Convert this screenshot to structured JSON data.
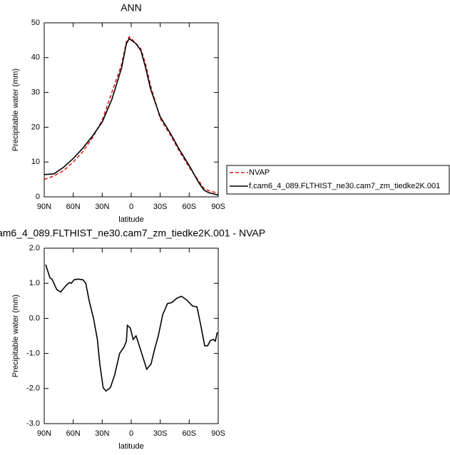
{
  "chart_data": [
    {
      "type": "line",
      "title": "ANN",
      "xlabel": "latitude",
      "ylabel": "Precipitable water (mm)",
      "x": [
        90,
        80,
        70,
        60,
        50,
        40,
        30,
        20,
        10,
        5,
        2,
        0,
        -5,
        -10,
        -15,
        -20,
        -30,
        -40,
        -50,
        -60,
        -70,
        -75,
        -80,
        -90
      ],
      "series": [
        {
          "name": "NVAP",
          "color": "#e41a1c",
          "dash": true,
          "values": [
            5,
            6,
            7.5,
            10,
            13,
            17,
            22,
            30,
            38,
            44.5,
            46,
            45.5,
            44,
            42.5,
            38,
            32,
            22.5,
            18,
            13,
            8.5,
            4.5,
            2.5,
            1.8,
            1
          ]
        },
        {
          "name": "f.cam6_4_089.FLTHIST_ne30.cam7_zm_tiedke2K.001",
          "color": "#000000",
          "dash": false,
          "values": [
            6.4,
            6.6,
            8.5,
            11,
            14,
            17.5,
            21.5,
            28,
            37,
            44,
            45.5,
            45,
            44,
            42,
            37,
            31,
            23,
            18.5,
            13.5,
            9,
            4,
            2,
            1.2,
            0.5
          ]
        }
      ],
      "xlim": [
        90,
        -90
      ],
      "xticks": [
        {
          "value": 90,
          "label": "90N"
        },
        {
          "value": 60,
          "label": "60N"
        },
        {
          "value": 30,
          "label": "30N"
        },
        0,
        {
          "value": -30,
          "label": "30S"
        },
        {
          "value": -60,
          "label": "60S"
        },
        {
          "value": -90,
          "label": "90S"
        }
      ],
      "ylim": [
        0,
        50
      ],
      "yticks": [
        0,
        10,
        20,
        30,
        40,
        50
      ],
      "legend": "right"
    },
    {
      "type": "line",
      "title": "am6_4_089.FLTHIST_ne30.cam7_zm_tiedke2K.001 - NVAP",
      "xlabel": "latitude",
      "ylabel": "Precipitable water (mm)",
      "x": [
        88.5,
        84,
        82,
        77,
        73,
        67,
        64,
        62,
        59,
        55,
        50,
        47,
        43.5,
        39,
        35,
        32.5,
        29,
        26,
        21.5,
        17,
        12,
        7.5,
        5,
        4,
        1,
        -2,
        -5,
        -8,
        -12,
        -16,
        -20.5,
        -24,
        -28,
        -32.5,
        -37.5,
        -42,
        -47,
        -52,
        -57.5,
        -63.5,
        -68,
        -72,
        -76,
        -79,
        -82,
        -85,
        -87,
        -89
      ],
      "series": [
        {
          "color": "#000000",
          "dash": false,
          "values": [
            1.53,
            1.15,
            1.12,
            0.82,
            0.75,
            0.95,
            1.02,
            1.0,
            1.1,
            1.12,
            1.1,
            1.0,
            0.5,
            0.0,
            -0.6,
            -1.3,
            -1.98,
            -2.07,
            -1.97,
            -1.6,
            -1.0,
            -0.82,
            -0.65,
            -0.2,
            -0.27,
            -0.6,
            -0.5,
            -0.75,
            -1.1,
            -1.45,
            -1.3,
            -0.9,
            -0.5,
            0.1,
            0.42,
            0.45,
            0.57,
            0.63,
            0.52,
            0.35,
            0.33,
            -0.2,
            -0.78,
            -0.78,
            -0.63,
            -0.6,
            -0.65,
            -0.4
          ]
        }
      ],
      "xlim": [
        90,
        -90
      ],
      "xticks": [
        {
          "value": 90,
          "label": "90N"
        },
        {
          "value": 60,
          "label": "60N"
        },
        {
          "value": 30,
          "label": "30N"
        },
        0,
        {
          "value": -30,
          "label": "30S"
        },
        {
          "value": -60,
          "label": "60S"
        },
        {
          "value": -90,
          "label": "90S"
        }
      ],
      "ylim": [
        -3,
        2
      ],
      "yticks": [
        {
          "value": -3,
          "label": "-3.0"
        },
        {
          "value": -2,
          "label": "-2.0"
        },
        {
          "value": -1,
          "label": "-1.0"
        },
        {
          "value": 0,
          "label": "0.0"
        },
        {
          "value": 1,
          "label": "1.0"
        },
        {
          "value": 2,
          "label": "2.0"
        }
      ]
    }
  ]
}
